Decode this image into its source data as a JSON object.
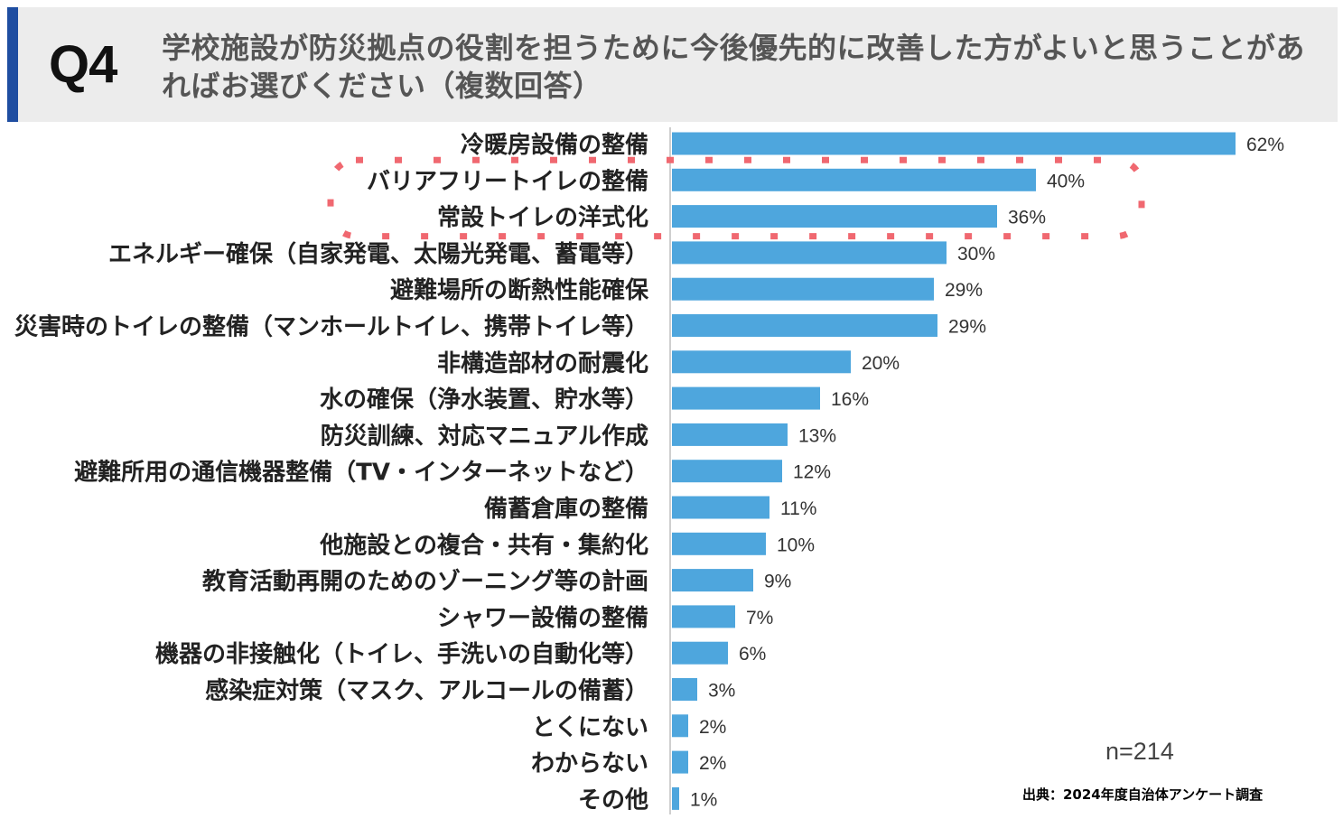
{
  "header": {
    "question_label": "Q4",
    "question_text": "学校施設が防災拠点の役割を担うために今後優先的に改善した方がよいと思うことがあればお選びください（複数回答）"
  },
  "chart_data": {
    "type": "bar",
    "orientation": "horizontal",
    "title": "学校施設が防災拠点の役割を担うために今後優先的に改善した方がよいと思うことがあればお選びください（複数回答）",
    "categories": [
      "冷暖房設備の整備",
      "バリアフリートイレの整備",
      "常設トイレの洋式化",
      "エネルギー確保（自家発電、太陽光発電、蓄電等）",
      "避難場所の断熱性能確保",
      "災害時のトイレの整備（マンホールトイレ、携帯トイレ等）",
      "非構造部材の耐震化",
      "水の確保（浄水装置、貯水等）",
      "防災訓練、対応マニュアル作成",
      "避難所用の通信機器整備（TV・インターネットなど）",
      "備蓄倉庫の整備",
      "他施設との複合・共有・集約化",
      "教育活動再開のためのゾーニング等の計画",
      "シャワー設備の整備",
      "機器の非接触化（トイレ、手洗いの自動化等）",
      "感染症対策（マスク、アルコールの備蓄）",
      "とくにない",
      "わからない",
      "その他"
    ],
    "values": [
      62,
      40,
      36,
      30,
      29,
      29,
      20,
      16,
      13,
      12,
      11,
      10,
      9,
      7,
      6,
      3,
      2,
      2,
      1
    ],
    "value_labels": [
      "62%",
      "40%",
      "36%",
      "30%",
      "29%",
      "29%",
      "20%",
      "16%",
      "13%",
      "12%",
      "11%",
      "10%",
      "9%",
      "7%",
      "6%",
      "3%",
      "2%",
      "2%",
      "1%"
    ],
    "bar_lengths": [
      62.4,
      40.3,
      36.0,
      30.4,
      29.0,
      29.4,
      19.8,
      16.4,
      12.8,
      12.2,
      10.8,
      10.4,
      9.0,
      7.0,
      6.2,
      2.8,
      1.8,
      1.8,
      0.8
    ],
    "highlighted_categories": [
      "バリアフリートイレの整備",
      "常設トイレの洋式化"
    ],
    "xlim": [
      0,
      65
    ],
    "bar_color": "#4ea6dd",
    "highlight_color": "#f06870",
    "sample_size": "n=214",
    "source": "出典：2024年度自治体アンケート調査"
  }
}
